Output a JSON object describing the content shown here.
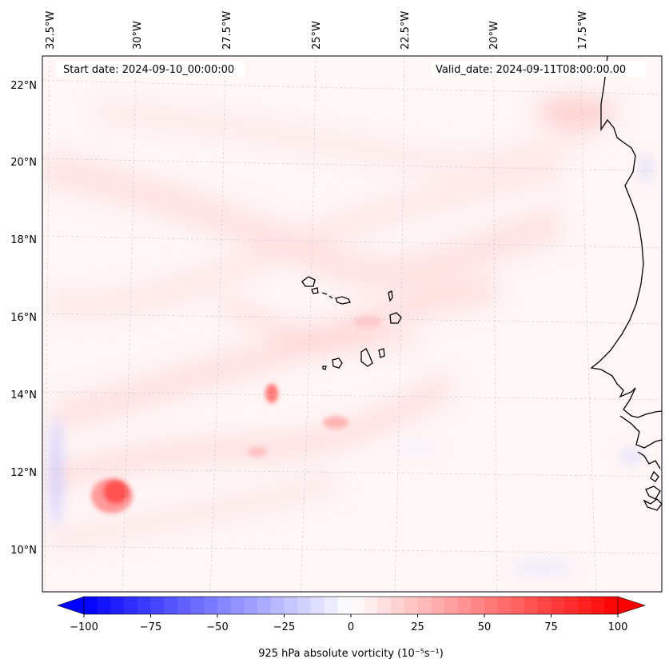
{
  "map": {
    "start_label": "Start date: 2024-09-10_00:00:00",
    "valid_label": "Valid_date: 2024-09-11T08:00:00.00",
    "lon_labels": [
      "32.5°W",
      "30°W",
      "27.5°W",
      "25°W",
      "22.5°W",
      "20°W",
      "17.5°W"
    ],
    "lat_labels": [
      "22°N",
      "20°N",
      "18°N",
      "16°N",
      "14°N",
      "12°N",
      "10°N"
    ],
    "coastline_color": "#000000",
    "gridline_style": "dashed-light-gray"
  },
  "colorbar": {
    "label": "925 hPa absolute vorticity (10⁻⁵s⁻¹)",
    "ticks": [
      "−100",
      "−75",
      "−50",
      "−25",
      "0",
      "25",
      "50",
      "75",
      "100"
    ],
    "min": -100,
    "max": 100,
    "step": 5,
    "extend": "both",
    "colormap": "bwr",
    "low_color": "#0000ff",
    "mid_color": "#ffffff",
    "high_color": "#ff0000"
  }
}
